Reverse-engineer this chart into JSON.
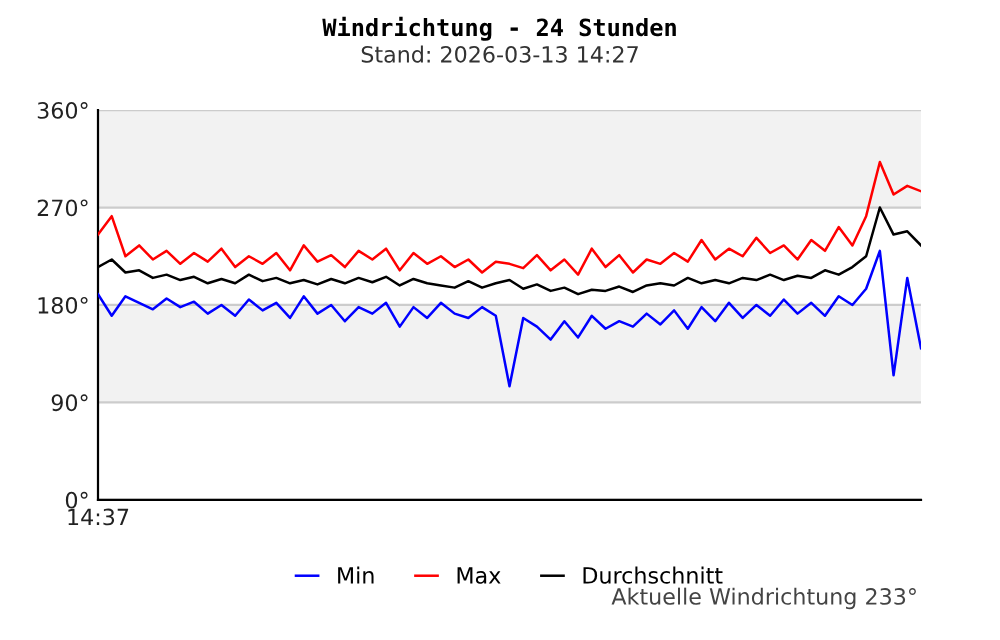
{
  "chart_data": {
    "type": "line",
    "title": "Windrichtung - 24 Stunden",
    "subtitle": "Stand: 2026-03-13 14:27",
    "categories": [
      "14:37",
      null,
      null,
      null,
      null,
      null,
      null,
      null,
      null,
      null,
      null,
      null,
      null,
      null,
      null,
      null,
      null,
      null,
      null,
      null,
      null,
      null,
      null,
      null,
      null,
      null,
      null,
      null,
      null,
      null,
      null,
      null,
      null,
      null,
      null,
      null,
      null,
      null,
      null,
      null,
      null,
      null,
      null,
      null,
      null,
      null,
      null,
      null,
      null,
      null,
      null,
      null,
      null,
      null,
      null,
      null,
      null,
      null,
      null,
      null,
      null
    ],
    "series": [
      {
        "name": "Min",
        "color": "#0000ff",
        "values": [
          190,
          170,
          188,
          182,
          176,
          186,
          178,
          183,
          172,
          180,
          170,
          185,
          175,
          182,
          168,
          188,
          172,
          180,
          165,
          178,
          172,
          182,
          160,
          178,
          168,
          182,
          172,
          168,
          178,
          170,
          105,
          168,
          160,
          148,
          165,
          150,
          170,
          158,
          165,
          160,
          172,
          162,
          175,
          158,
          178,
          165,
          182,
          168,
          180,
          170,
          185,
          172,
          182,
          170,
          188,
          180,
          195,
          230,
          115,
          205,
          140
        ]
      },
      {
        "name": "Max",
        "color": "#ff0000",
        "values": [
          245,
          262,
          225,
          235,
          222,
          230,
          218,
          228,
          220,
          232,
          215,
          225,
          218,
          228,
          212,
          235,
          220,
          226,
          215,
          230,
          222,
          232,
          212,
          228,
          218,
          225,
          215,
          222,
          210,
          220,
          218,
          214,
          226,
          212,
          222,
          208,
          232,
          215,
          226,
          210,
          222,
          218,
          228,
          220,
          240,
          222,
          232,
          225,
          242,
          228,
          235,
          222,
          240,
          230,
          252,
          235,
          262,
          312,
          282,
          290,
          285
        ]
      },
      {
        "name": "Durchschnitt",
        "color": "#000000",
        "values": [
          215,
          222,
          210,
          212,
          205,
          208,
          203,
          206,
          200,
          204,
          200,
          208,
          202,
          205,
          200,
          203,
          199,
          204,
          200,
          205,
          201,
          206,
          198,
          204,
          200,
          198,
          196,
          202,
          196,
          200,
          203,
          195,
          199,
          193,
          196,
          190,
          194,
          193,
          197,
          192,
          198,
          200,
          198,
          205,
          200,
          203,
          200,
          205,
          203,
          208,
          203,
          207,
          205,
          212,
          208,
          215,
          225,
          270,
          245,
          248,
          235
        ]
      }
    ],
    "ylim": [
      0,
      360
    ],
    "yticks": [
      {
        "value": 0,
        "label": "0°"
      },
      {
        "value": 90,
        "label": "90°"
      },
      {
        "value": 180,
        "label": "180°"
      },
      {
        "value": 270,
        "label": "270°"
      },
      {
        "value": 360,
        "label": "360°"
      }
    ],
    "bands": [
      {
        "axis": "y",
        "from": 270,
        "to": 360,
        "color": "#f2f2f2"
      },
      {
        "axis": "y",
        "from": 90,
        "to": 180,
        "color": "#f2f2f2"
      }
    ],
    "grid": "y",
    "legend": "bottom",
    "marker": "none",
    "line_style": "solid",
    "annotations": [
      "Aktuelle Windrichtung 233°"
    ]
  }
}
